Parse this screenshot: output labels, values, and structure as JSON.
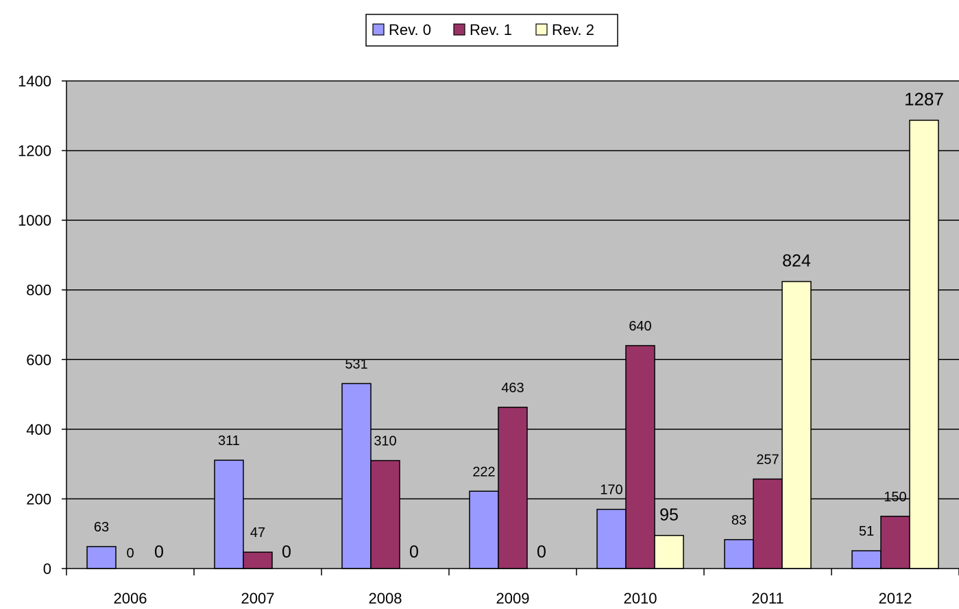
{
  "chart_data": {
    "type": "bar",
    "categories": [
      "2006",
      "2007",
      "2008",
      "2009",
      "2010",
      "2011",
      "2012"
    ],
    "series": [
      {
        "name": "Rev. 0",
        "color": "#9999ff",
        "values": [
          63,
          311,
          531,
          222,
          170,
          83,
          51
        ]
      },
      {
        "name": "Rev. 1",
        "color": "#993366",
        "values": [
          0,
          47,
          310,
          463,
          640,
          257,
          150
        ]
      },
      {
        "name": "Rev. 2",
        "color": "#ffffcc",
        "values": [
          0,
          0,
          0,
          0,
          95,
          824,
          1287
        ]
      }
    ],
    "ylim": [
      0,
      1400
    ],
    "yticks": [
      0,
      200,
      400,
      600,
      800,
      1000,
      1200,
      1400
    ],
    "grid": true,
    "plot_background": "#c0c0c0",
    "legend_position": "top-center"
  }
}
